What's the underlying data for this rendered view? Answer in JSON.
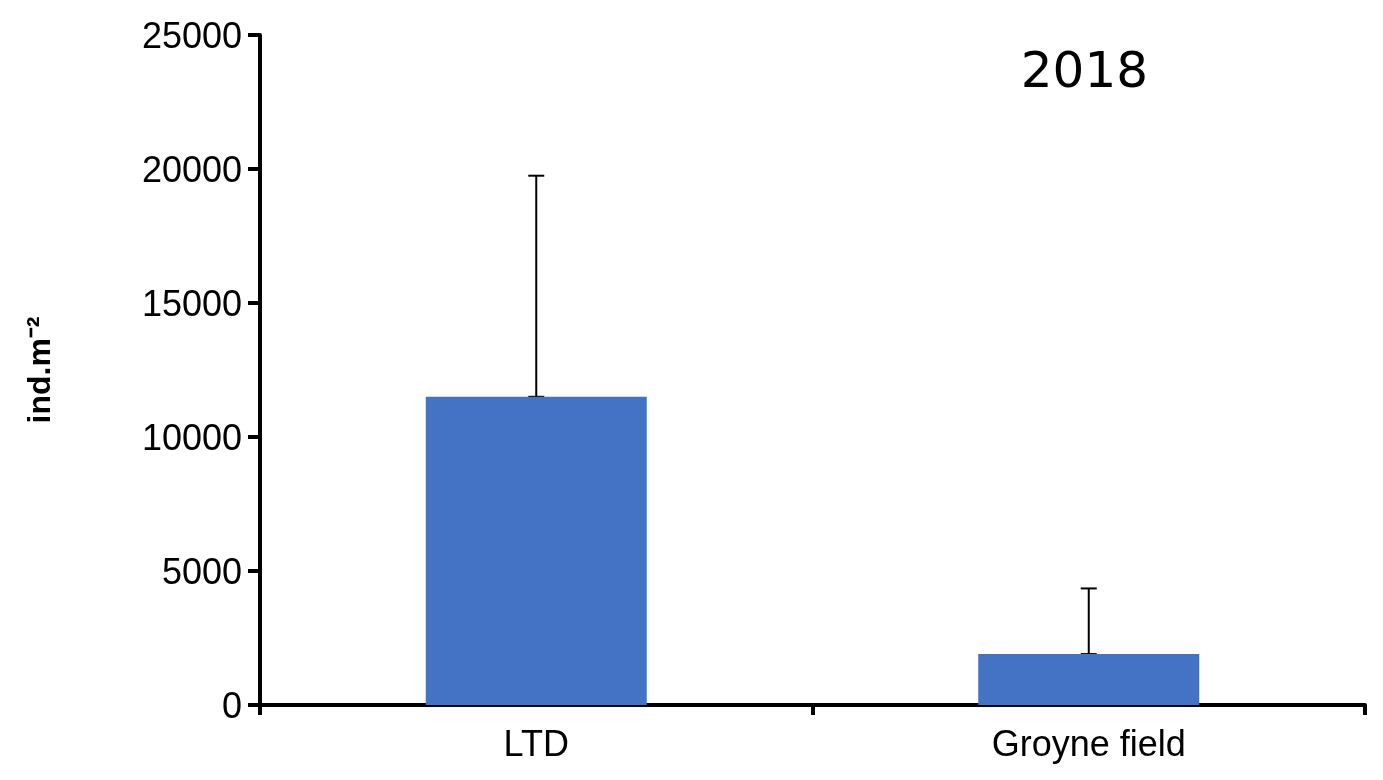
{
  "chart_data": {
    "type": "bar",
    "ylabel": "ind.m⁻²",
    "annotations": [
      "2018"
    ],
    "categories": [
      "LTD",
      "Groyne field"
    ],
    "values": [
      11500,
      1900
    ],
    "errors": [
      [
        11500,
        19750
      ],
      [
        1900,
        4350
      ]
    ],
    "color": "#4472c4",
    "ylim": [
      0,
      25000
    ],
    "yticks": [
      0,
      5000,
      10000,
      15000,
      20000,
      25000
    ],
    "grid": false
  }
}
